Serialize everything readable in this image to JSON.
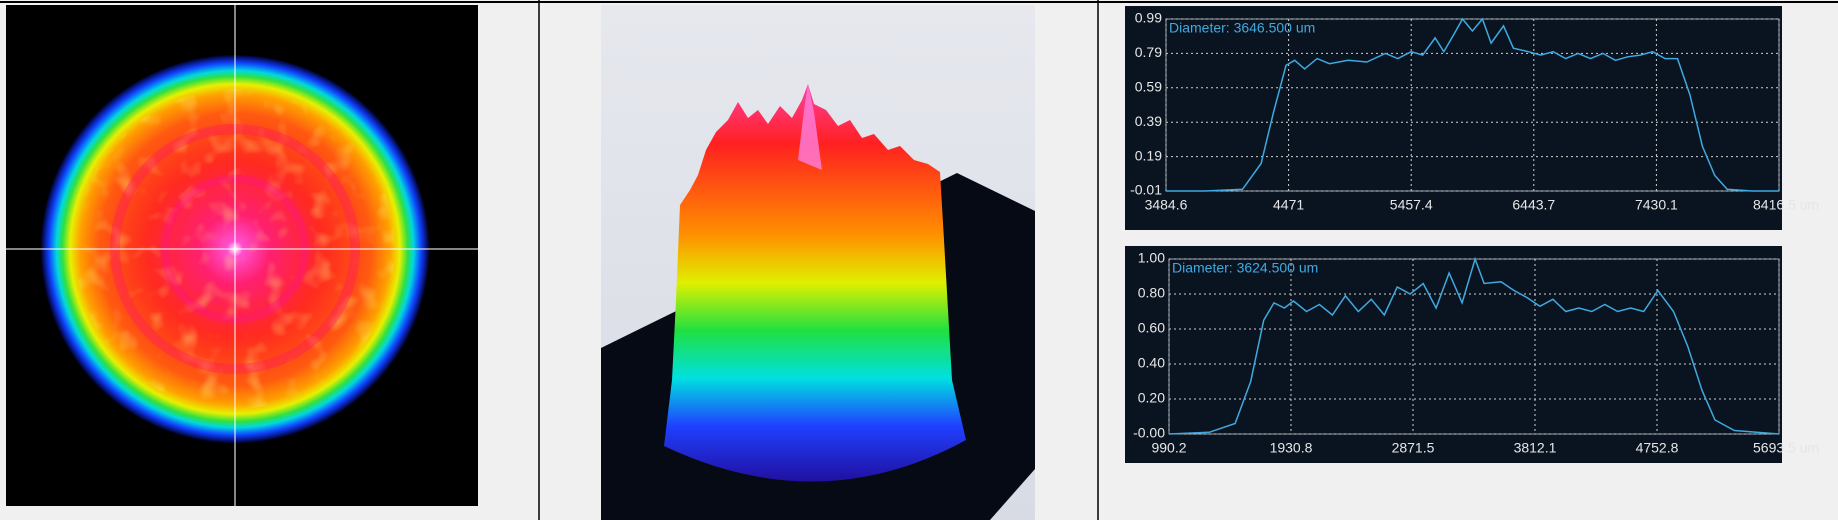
{
  "chart_data": [
    {
      "type": "line",
      "annotation": "Diameter: 3646.500 um",
      "color": "#3fa9e0",
      "grid": true,
      "x": [
        3484.6,
        3800,
        4100,
        4250,
        4350,
        4450,
        4520,
        4600,
        4700,
        4800,
        4950,
        5100,
        5250,
        5350,
        5457,
        5550,
        5650,
        5720,
        5800,
        5870,
        5950,
        6030,
        6100,
        6200,
        6280,
        6400,
        6500,
        6600,
        6700,
        6800,
        6900,
        7000,
        7100,
        7200,
        7300,
        7400,
        7500,
        7600,
        7700,
        7800,
        7900,
        8000,
        8200,
        8416.5
      ],
      "values": [
        -0.01,
        -0.01,
        0.0,
        0.15,
        0.45,
        0.72,
        0.75,
        0.7,
        0.76,
        0.73,
        0.75,
        0.74,
        0.79,
        0.76,
        0.8,
        0.78,
        0.88,
        0.8,
        0.9,
        0.99,
        0.92,
        0.99,
        0.85,
        0.95,
        0.82,
        0.8,
        0.78,
        0.8,
        0.76,
        0.79,
        0.76,
        0.79,
        0.75,
        0.77,
        0.78,
        0.8,
        0.76,
        0.76,
        0.55,
        0.25,
        0.08,
        0.0,
        -0.01,
        -0.01
      ],
      "xlim": [
        3484.6,
        8416.5
      ],
      "ylim": [
        -0.01,
        0.99
      ],
      "xticks": [
        3484.6,
        4471.0,
        5457.4,
        6443.7,
        7430.1,
        {
          "value": 8416.5,
          "label": "8416.5 um"
        }
      ],
      "yticks": [
        -0.01,
        0.19,
        0.39,
        0.59,
        0.79,
        0.99
      ]
    },
    {
      "type": "line",
      "annotation": "Diameter: 3624.500 um",
      "color": "#3fa9e0",
      "grid": true,
      "x": [
        990.2,
        1300,
        1500,
        1620,
        1720,
        1800,
        1880,
        1950,
        2050,
        2150,
        2250,
        2350,
        2450,
        2550,
        2650,
        2750,
        2850,
        2950,
        3050,
        3150,
        3250,
        3350,
        3420,
        3550,
        3650,
        3750,
        3850,
        3950,
        4050,
        4150,
        4250,
        4350,
        4450,
        4550,
        4650,
        4760,
        4880,
        4990,
        5100,
        5200,
        5350,
        5693.5
      ],
      "values": [
        0.0,
        0.01,
        0.06,
        0.3,
        0.65,
        0.75,
        0.72,
        0.76,
        0.7,
        0.74,
        0.68,
        0.79,
        0.7,
        0.77,
        0.68,
        0.84,
        0.8,
        0.86,
        0.72,
        0.92,
        0.75,
        1.0,
        0.86,
        0.87,
        0.82,
        0.78,
        0.73,
        0.77,
        0.7,
        0.72,
        0.7,
        0.74,
        0.7,
        0.72,
        0.7,
        0.82,
        0.7,
        0.5,
        0.25,
        0.08,
        0.02,
        0.0
      ],
      "xlim": [
        990.2,
        5693.5
      ],
      "ylim": [
        0,
        1.0
      ],
      "xticks": [
        990.2,
        1930.8,
        2871.5,
        3812.1,
        4752.8,
        {
          "value": 5693.5,
          "label": "5693.5 um"
        }
      ],
      "yticks": [
        {
          "value": 0,
          "label": "-0.00"
        },
        {
          "value": 0.2,
          "label": "0.20"
        },
        {
          "value": 0.4,
          "label": "0.40"
        },
        {
          "value": 0.6,
          "label": "0.60"
        },
        {
          "value": 0.8,
          "label": "0.80"
        },
        {
          "value": 1.0,
          "label": "1.00"
        }
      ]
    }
  ]
}
